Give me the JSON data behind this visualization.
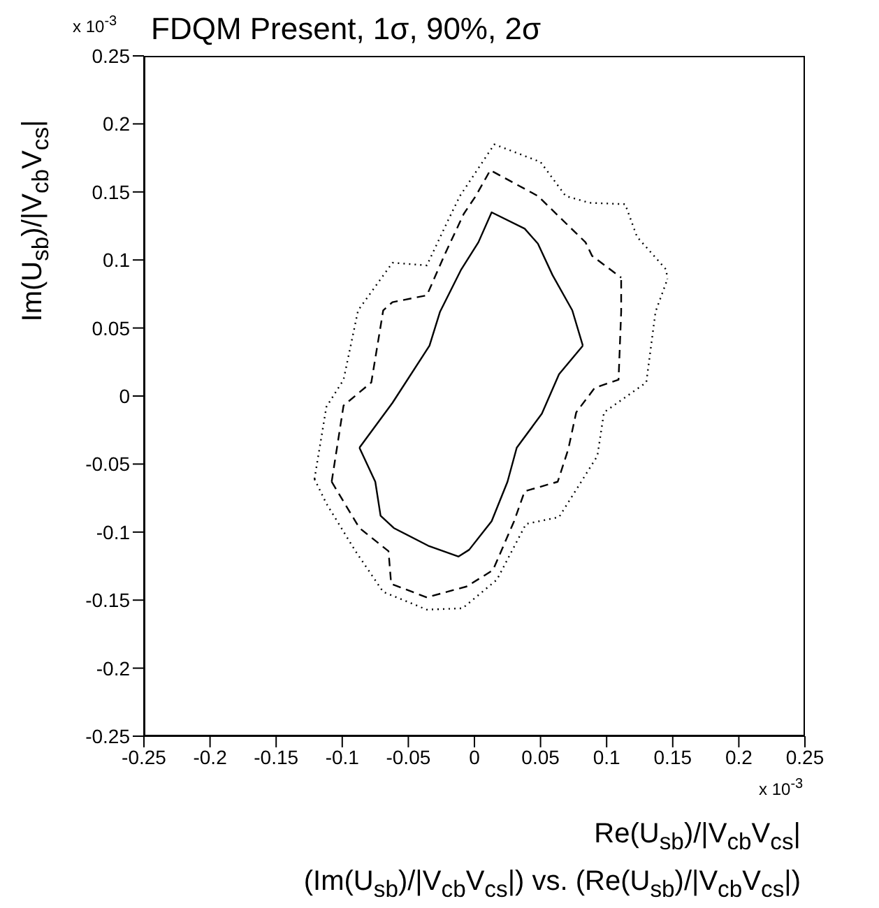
{
  "chart_data": {
    "type": "line",
    "title": "FDQM Present, 1σ, 90%, 2σ",
    "xlabel": "Re(U$_{sb}$)/|V$_{cb}$V$_{cs}$|",
    "ylabel": "Im(U$_{sb}$)/|V$_{cb}$V$_{cs}$|",
    "annotations": [
      "x 10$^{-3}$",
      "x 10$^{-3}$",
      "(Im(U$_{sb}$)/|V$_{cb}$V$_{cs}$|) vs. (Re(U$_{sb}$)/|V$_{cb}$V$_{cs}$|)"
    ],
    "xlim": [
      -0.25,
      0.25
    ],
    "ylim": [
      -0.25,
      0.25
    ],
    "xticks": [
      -0.25,
      -0.2,
      -0.15,
      -0.1,
      -0.05,
      0,
      0.05,
      0.1,
      0.15,
      0.2,
      0.25
    ],
    "yticks": [
      -0.25,
      -0.2,
      -0.15,
      -0.1,
      -0.05,
      0,
      0.05,
      0.1,
      0.15,
      0.2,
      0.25
    ],
    "grid": false,
    "legend": false,
    "series": [
      {
        "color": "#000000",
        "line_style": "solid",
        "x": [
          -0.087,
          -0.062,
          -0.034,
          -0.026,
          -0.01,
          0.003,
          0.013,
          0.038,
          0.048,
          0.059,
          0.074,
          0.082
        ],
        "values": [
          -0.038,
          -0.005,
          0.037,
          0.062,
          0.093,
          0.113,
          0.135,
          0.123,
          0.112,
          0.089,
          0.063,
          0.037
        ]
      },
      {
        "color": "#000000",
        "line_style": "solid",
        "x": [
          -0.087,
          -0.075,
          -0.071,
          -0.061,
          -0.035,
          -0.012,
          -0.004,
          0.013,
          0.025,
          0.032,
          0.051,
          0.064,
          0.082
        ],
        "values": [
          -0.038,
          -0.063,
          -0.088,
          -0.097,
          -0.11,
          -0.118,
          -0.113,
          -0.092,
          -0.063,
          -0.038,
          -0.013,
          0.016,
          0.037
        ]
      },
      {
        "color": "#000000",
        "line_style": "dashed",
        "x": [
          -0.108,
          -0.099,
          -0.078,
          -0.069,
          -0.062,
          -0.036,
          -0.022,
          -0.008,
          0.001,
          0.012,
          0.048,
          0.084,
          0.089,
          0.111
        ],
        "values": [
          -0.063,
          -0.007,
          0.01,
          0.063,
          0.069,
          0.074,
          0.105,
          0.134,
          0.147,
          0.166,
          0.147,
          0.113,
          0.103,
          0.087
        ]
      },
      {
        "color": "#000000",
        "line_style": "dashed",
        "x": [
          -0.108,
          -0.087,
          -0.065,
          -0.063,
          -0.036,
          -0.006,
          0.014,
          0.03,
          0.038,
          0.063,
          0.071,
          0.077,
          0.091,
          0.109,
          0.111,
          0.111
        ],
        "values": [
          -0.063,
          -0.097,
          -0.114,
          -0.138,
          -0.148,
          -0.14,
          -0.128,
          -0.092,
          -0.07,
          -0.063,
          -0.039,
          -0.012,
          0.006,
          0.012,
          0.062,
          0.087
        ]
      },
      {
        "color": "#000000",
        "line_style": "dotted",
        "x": [
          -0.121,
          -0.112,
          -0.099,
          -0.088,
          -0.062,
          -0.036,
          -0.02,
          -0.011,
          0.015,
          0.05,
          0.069,
          0.087,
          0.114,
          0.123,
          0.145,
          0.146
        ],
        "values": [
          -0.061,
          -0.008,
          0.012,
          0.063,
          0.098,
          0.096,
          0.129,
          0.147,
          0.185,
          0.172,
          0.147,
          0.142,
          0.141,
          0.117,
          0.093,
          0.086
        ]
      },
      {
        "color": "#000000",
        "line_style": "dotted",
        "x": [
          -0.121,
          -0.112,
          -0.09,
          -0.069,
          -0.036,
          -0.009,
          0.017,
          0.039,
          0.064,
          0.093,
          0.098,
          0.13,
          0.137,
          0.146
        ],
        "values": [
          -0.061,
          -0.079,
          -0.114,
          -0.144,
          -0.157,
          -0.156,
          -0.135,
          -0.094,
          -0.089,
          -0.044,
          -0.012,
          0.01,
          0.062,
          0.086
        ]
      }
    ]
  }
}
